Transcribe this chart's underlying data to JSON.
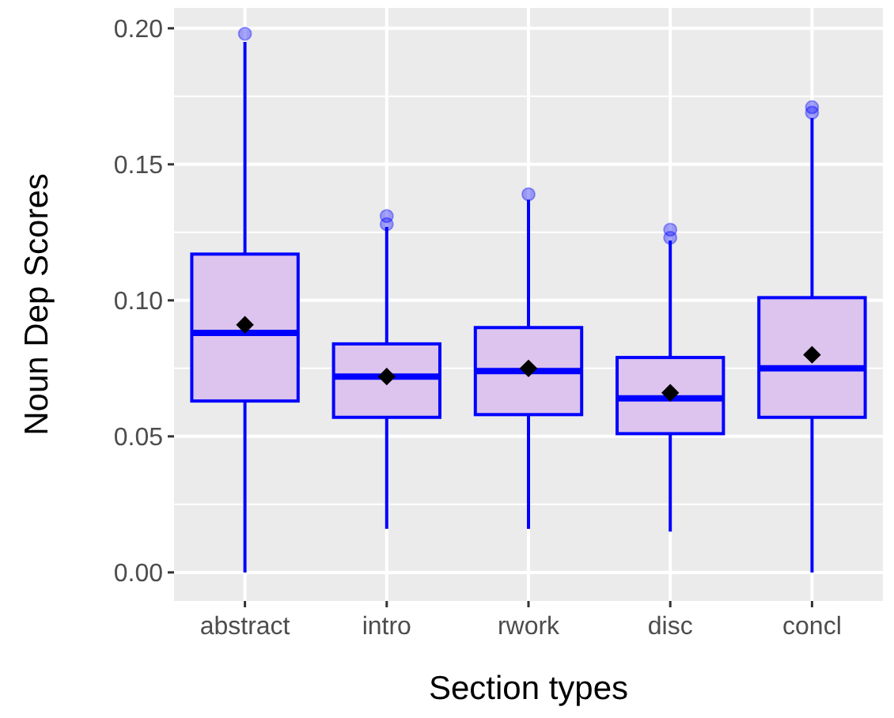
{
  "chart_data": {
    "type": "box",
    "xlabel": "Section types",
    "ylabel": "Noun Dep Scores",
    "categories": [
      "abstract",
      "intro",
      "rwork",
      "disc",
      "concl"
    ],
    "color": "#0000ff",
    "ylim": [
      -0.0105,
      0.2075
    ],
    "yticks": [
      {
        "value": 0,
        "label": "0.00"
      },
      {
        "value": 0.05,
        "label": "0.05"
      },
      {
        "value": 0.1,
        "label": "0.10"
      },
      {
        "value": 0.15,
        "label": "0.15"
      },
      {
        "value": 0.2,
        "label": "0.20"
      }
    ],
    "grid": true,
    "boxes": [
      {
        "low": 0,
        "q1": 0.063,
        "median": 0.088,
        "q3": 0.117,
        "high": 0.195,
        "mean": 0.091,
        "outliers": [
          0.198
        ]
      },
      {
        "low": 0.016,
        "q1": 0.057,
        "median": 0.072,
        "q3": 0.084,
        "high": 0.127,
        "mean": 0.072,
        "outliers": [
          0.128,
          0.131
        ]
      },
      {
        "low": 0.016,
        "q1": 0.058,
        "median": 0.074,
        "q3": 0.09,
        "high": 0.137,
        "mean": 0.075,
        "outliers": [
          0.139
        ]
      },
      {
        "low": 0.015,
        "q1": 0.051,
        "median": 0.064,
        "q3": 0.079,
        "high": 0.122,
        "mean": 0.066,
        "outliers": [
          0.123,
          0.126
        ]
      },
      {
        "low": 0,
        "q1": 0.057,
        "median": 0.075,
        "q3": 0.101,
        "high": 0.167,
        "mean": 0.08,
        "outliers": [
          0.169,
          0.171
        ]
      }
    ]
  }
}
